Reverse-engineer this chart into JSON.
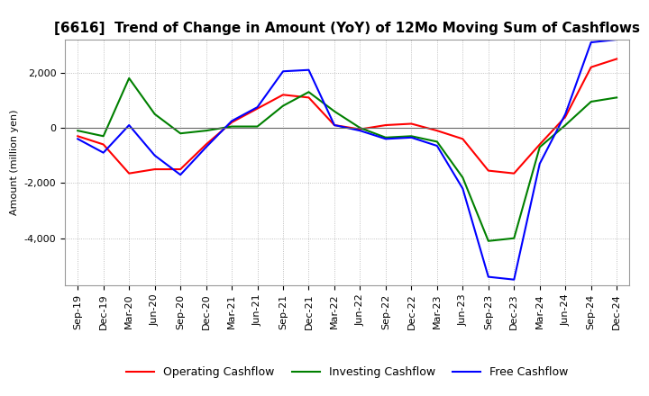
{
  "title": "[6616]  Trend of Change in Amount (YoY) of 12Mo Moving Sum of Cashflows",
  "ylabel": "Amount (million yen)",
  "x_labels": [
    "Sep-19",
    "Dec-19",
    "Mar-20",
    "Jun-20",
    "Sep-20",
    "Dec-20",
    "Mar-21",
    "Jun-21",
    "Sep-21",
    "Dec-21",
    "Mar-22",
    "Jun-22",
    "Sep-22",
    "Dec-22",
    "Mar-23",
    "Jun-23",
    "Sep-23",
    "Dec-23",
    "Mar-24",
    "Jun-24",
    "Sep-24",
    "Dec-24"
  ],
  "operating": [
    -300,
    -600,
    -1650,
    -1500,
    -1500,
    -600,
    200,
    700,
    1200,
    1100,
    100,
    -50,
    100,
    150,
    -100,
    -400,
    -1550,
    -1650,
    -600,
    400,
    2200,
    2500
  ],
  "investing": [
    -100,
    -300,
    1800,
    500,
    -200,
    -100,
    50,
    50,
    800,
    1300,
    600,
    0,
    -350,
    -300,
    -500,
    -1800,
    -4100,
    -4000,
    -700,
    100,
    950,
    1100
  ],
  "free": [
    -400,
    -900,
    100,
    -1000,
    -1700,
    -700,
    250,
    750,
    2050,
    2100,
    100,
    -100,
    -400,
    -350,
    -650,
    -2200,
    -5400,
    -5500,
    -1300,
    500,
    3100,
    3200
  ],
  "ylim": [
    -5700,
    3200
  ],
  "yticks": [
    -4000,
    -2000,
    0,
    2000
  ],
  "operating_color": "#ff0000",
  "investing_color": "#008000",
  "free_color": "#0000ff",
  "background_color": "#ffffff",
  "grid_color": "#b0b0b0",
  "title_fontsize": 11,
  "axis_fontsize": 8,
  "legend_fontsize": 9
}
